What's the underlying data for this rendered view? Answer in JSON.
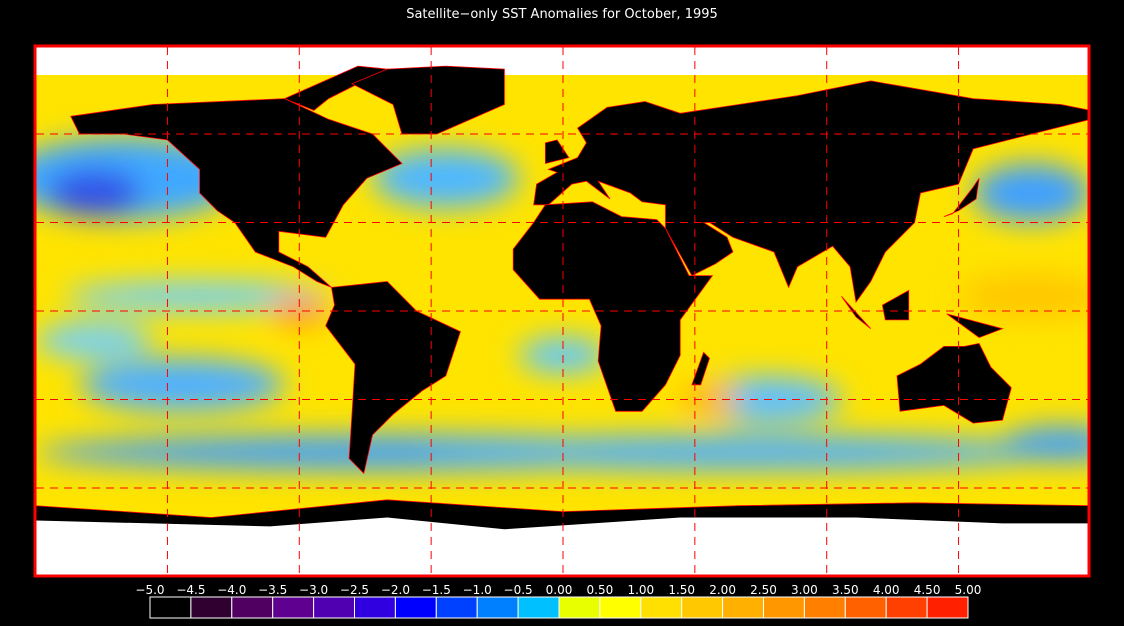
{
  "title": "Satellite−only SST Anomalies for October, 1995",
  "colorbar": {
    "ticks": [
      {
        "value": -5.0,
        "label": "−5.0"
      },
      {
        "value": -4.5,
        "label": "−4.5"
      },
      {
        "value": -4.0,
        "label": "−4.0"
      },
      {
        "value": -3.5,
        "label": "−3.5"
      },
      {
        "value": -3.0,
        "label": "−3.0"
      },
      {
        "value": -2.5,
        "label": "−2.5"
      },
      {
        "value": -2.0,
        "label": "−2.0"
      },
      {
        "value": -1.5,
        "label": "−1.5"
      },
      {
        "value": -1.0,
        "label": "−1.0"
      },
      {
        "value": -0.5,
        "label": "−0.5"
      },
      {
        "value": 0,
        "label": "0.00"
      },
      {
        "value": 0.5,
        "label": "0.50"
      },
      {
        "value": 1.0,
        "label": "1.00"
      },
      {
        "value": 1.5,
        "label": "1.50"
      },
      {
        "value": 2.0,
        "label": "2.00"
      },
      {
        "value": 2.5,
        "label": "2.50"
      },
      {
        "value": 3.0,
        "label": "3.00"
      },
      {
        "value": 3.5,
        "label": "3.50"
      },
      {
        "value": 4.0,
        "label": "4.00"
      },
      {
        "value": 4.5,
        "label": "4.50"
      },
      {
        "value": 5.0,
        "label": "5.00"
      }
    ],
    "colors": [
      "#000000",
      "#300030",
      "#500060",
      "#600090",
      "#5000b0",
      "#3000e0",
      "#0000ff",
      "#0040ff",
      "#0080ff",
      "#00c0ff",
      "#e8ff00",
      "#ffff00",
      "#ffe000",
      "#ffc800",
      "#ffb000",
      "#ff9800",
      "#ff8000",
      "#ff6000",
      "#ff4000",
      "#ff2000"
    ]
  }
}
